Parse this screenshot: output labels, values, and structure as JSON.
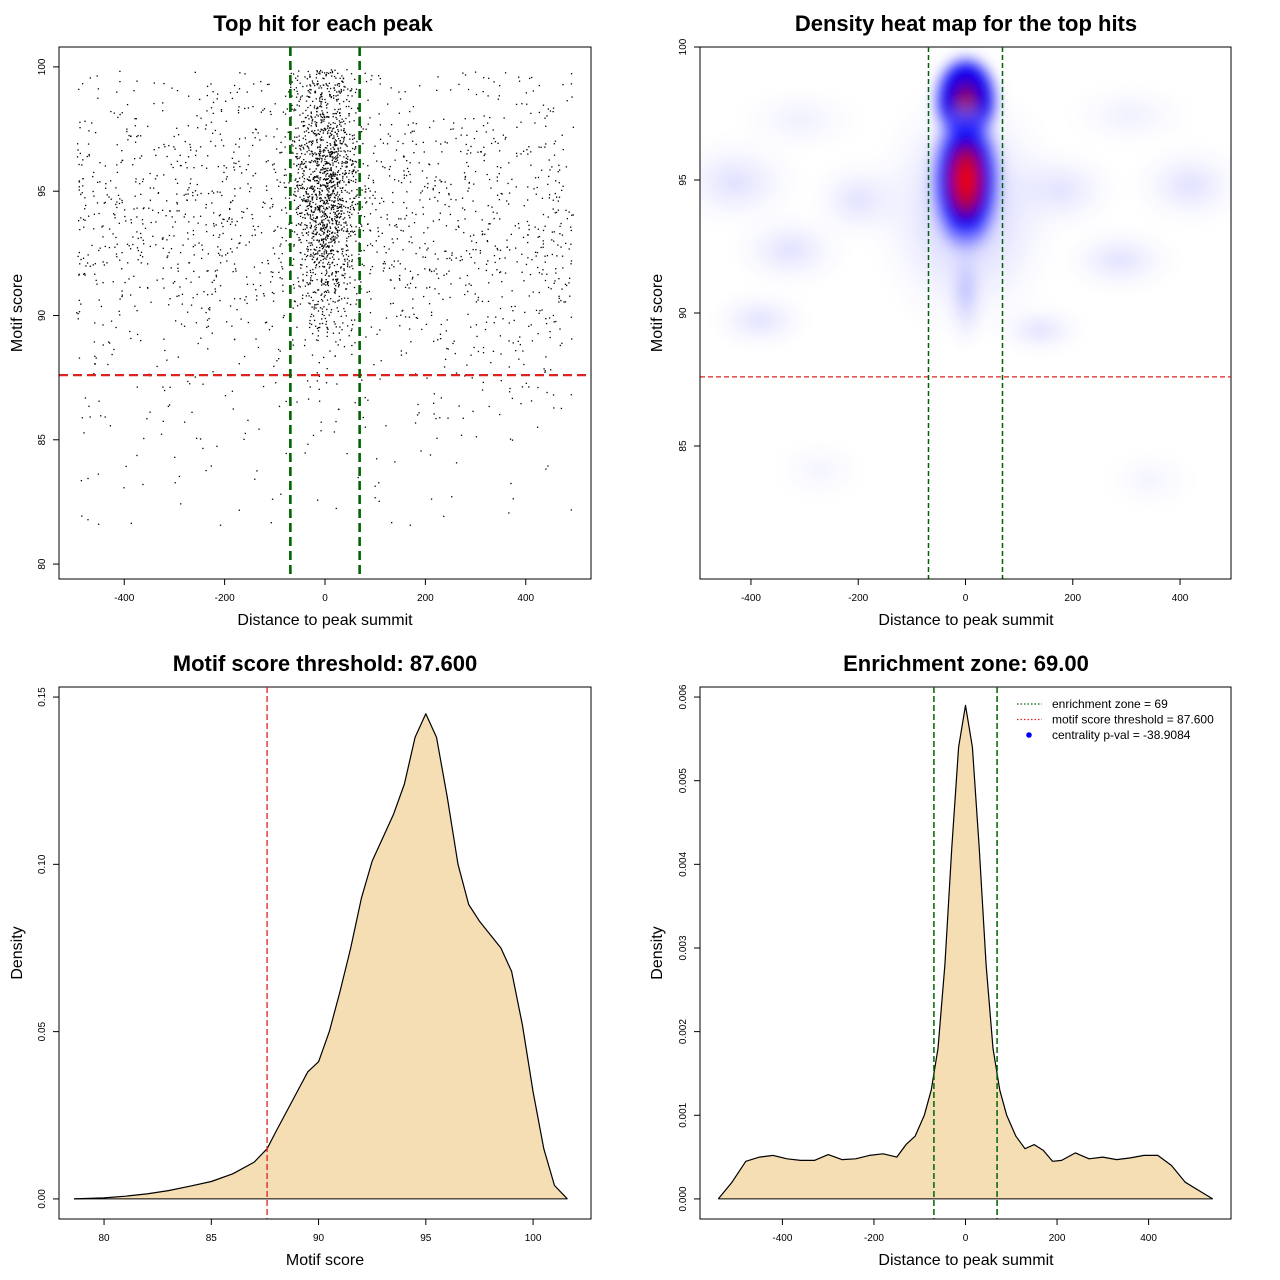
{
  "chart_data": [
    {
      "type": "scatter",
      "title": "Top hit for each peak",
      "xlabel": "Distance to peak summit",
      "ylabel": "Motif score",
      "xlim": [
        -530,
        530
      ],
      "ylim": [
        79.4,
        100.8
      ],
      "xticks": [
        "-400",
        "-200",
        "0",
        "200",
        "400"
      ],
      "yticks": [
        "80",
        "85",
        "90",
        "95",
        "100"
      ],
      "enrichment_zone": 69,
      "score_threshold": 87.6,
      "colors": {
        "points": "#000000",
        "zone": "#006400",
        "threshold": "#dd2222"
      },
      "grid": false
    },
    {
      "type": "heatmap",
      "title": "Density heat map for the top hits",
      "xlabel": "Distance to peak summit",
      "ylabel": "Motif score",
      "xlim": [
        -495,
        495
      ],
      "ylim": [
        80.0,
        100.0
      ],
      "xticks": [
        "-400",
        "-200",
        "0",
        "200",
        "400"
      ],
      "yticks": [
        "85",
        "90",
        "95",
        "100"
      ],
      "enrichment_zone": 69,
      "score_threshold": 87.6,
      "peak": {
        "x": 5,
        "y": 95.2
      },
      "colors": {
        "low": "#ffffff",
        "mid": "#0000ff",
        "high": "#ff0000",
        "zone": "#006400",
        "threshold": "#dd2222"
      },
      "grid": false
    },
    {
      "type": "area",
      "title": "Motif score threshold: 87.600",
      "xlabel": "Motif score",
      "ylabel": "Density",
      "xlim": [
        77.9,
        102.7
      ],
      "ylim": [
        -0.006,
        0.153
      ],
      "xticks": [
        "80",
        "85",
        "90",
        "95",
        "100"
      ],
      "yticks": [
        "0.00",
        "0.05",
        "0.10",
        "0.15"
      ],
      "x": [
        78.6,
        80,
        81,
        82,
        83,
        84,
        85,
        86,
        87,
        87.6,
        88,
        89,
        89.5,
        90,
        90.5,
        91,
        91.5,
        92,
        92.5,
        93,
        93.5,
        94,
        94.5,
        95,
        95.5,
        96,
        96.5,
        97,
        97.5,
        98,
        98.5,
        99,
        99.5,
        100,
        100.5,
        101,
        101.6
      ],
      "y": [
        0.0,
        0.0003,
        0.0008,
        0.0015,
        0.0025,
        0.0038,
        0.0052,
        0.0075,
        0.011,
        0.015,
        0.02,
        0.032,
        0.038,
        0.041,
        0.05,
        0.062,
        0.075,
        0.09,
        0.101,
        0.108,
        0.115,
        0.124,
        0.138,
        0.145,
        0.138,
        0.12,
        0.1,
        0.088,
        0.083,
        0.079,
        0.075,
        0.068,
        0.052,
        0.032,
        0.015,
        0.004,
        0.0
      ],
      "threshold": 87.6,
      "colors": {
        "fill": "#f5deb3",
        "line": "#000000",
        "threshold": "#dd2222"
      },
      "grid": false
    },
    {
      "type": "area",
      "title": "Enrichment zone: 69.00",
      "xlabel": "Distance to peak summit",
      "ylabel": "Density",
      "xlim": [
        -580,
        580
      ],
      "ylim": [
        -0.00024,
        0.00612
      ],
      "xticks": [
        "-400",
        "-200",
        "0",
        "200",
        "400"
      ],
      "yticks": [
        "0.000",
        "0.001",
        "0.002",
        "0.003",
        "0.004",
        "0.005",
        "0.006"
      ],
      "x": [
        -540,
        -510,
        -480,
        -450,
        -420,
        -390,
        -360,
        -330,
        -300,
        -270,
        -240,
        -210,
        -180,
        -150,
        -130,
        -110,
        -90,
        -75,
        -60,
        -45,
        -30,
        -15,
        0,
        15,
        30,
        45,
        60,
        75,
        90,
        110,
        130,
        150,
        170,
        190,
        210,
        240,
        270,
        300,
        330,
        360,
        390,
        420,
        450,
        480,
        510,
        540
      ],
      "y": [
        0.0,
        0.0002,
        0.00045,
        0.0005,
        0.00052,
        0.00048,
        0.00046,
        0.00046,
        0.00053,
        0.00047,
        0.00048,
        0.00052,
        0.00054,
        0.0005,
        0.00065,
        0.00075,
        0.001,
        0.0013,
        0.0018,
        0.0028,
        0.0042,
        0.0054,
        0.0059,
        0.0054,
        0.0042,
        0.0028,
        0.0018,
        0.0013,
        0.001,
        0.00075,
        0.0006,
        0.00065,
        0.00058,
        0.00045,
        0.00046,
        0.00055,
        0.00048,
        0.0005,
        0.00047,
        0.00049,
        0.00052,
        0.00052,
        0.0004,
        0.0002,
        0.0001,
        0.0
      ],
      "enrichment_zone": 69,
      "legend": [
        {
          "label": "enrichment zone = 69",
          "style": "dotted",
          "color": "#006400"
        },
        {
          "label": "motif score threshold = 87.600",
          "style": "dotted",
          "color": "#dd2222"
        },
        {
          "label": "centrality p-val = -38.9084",
          "style": "point",
          "color": "#0000ff"
        }
      ],
      "legend_position": "top-right",
      "colors": {
        "fill": "#f5deb3",
        "line": "#000000",
        "zone": "#006400"
      },
      "grid": false
    }
  ]
}
